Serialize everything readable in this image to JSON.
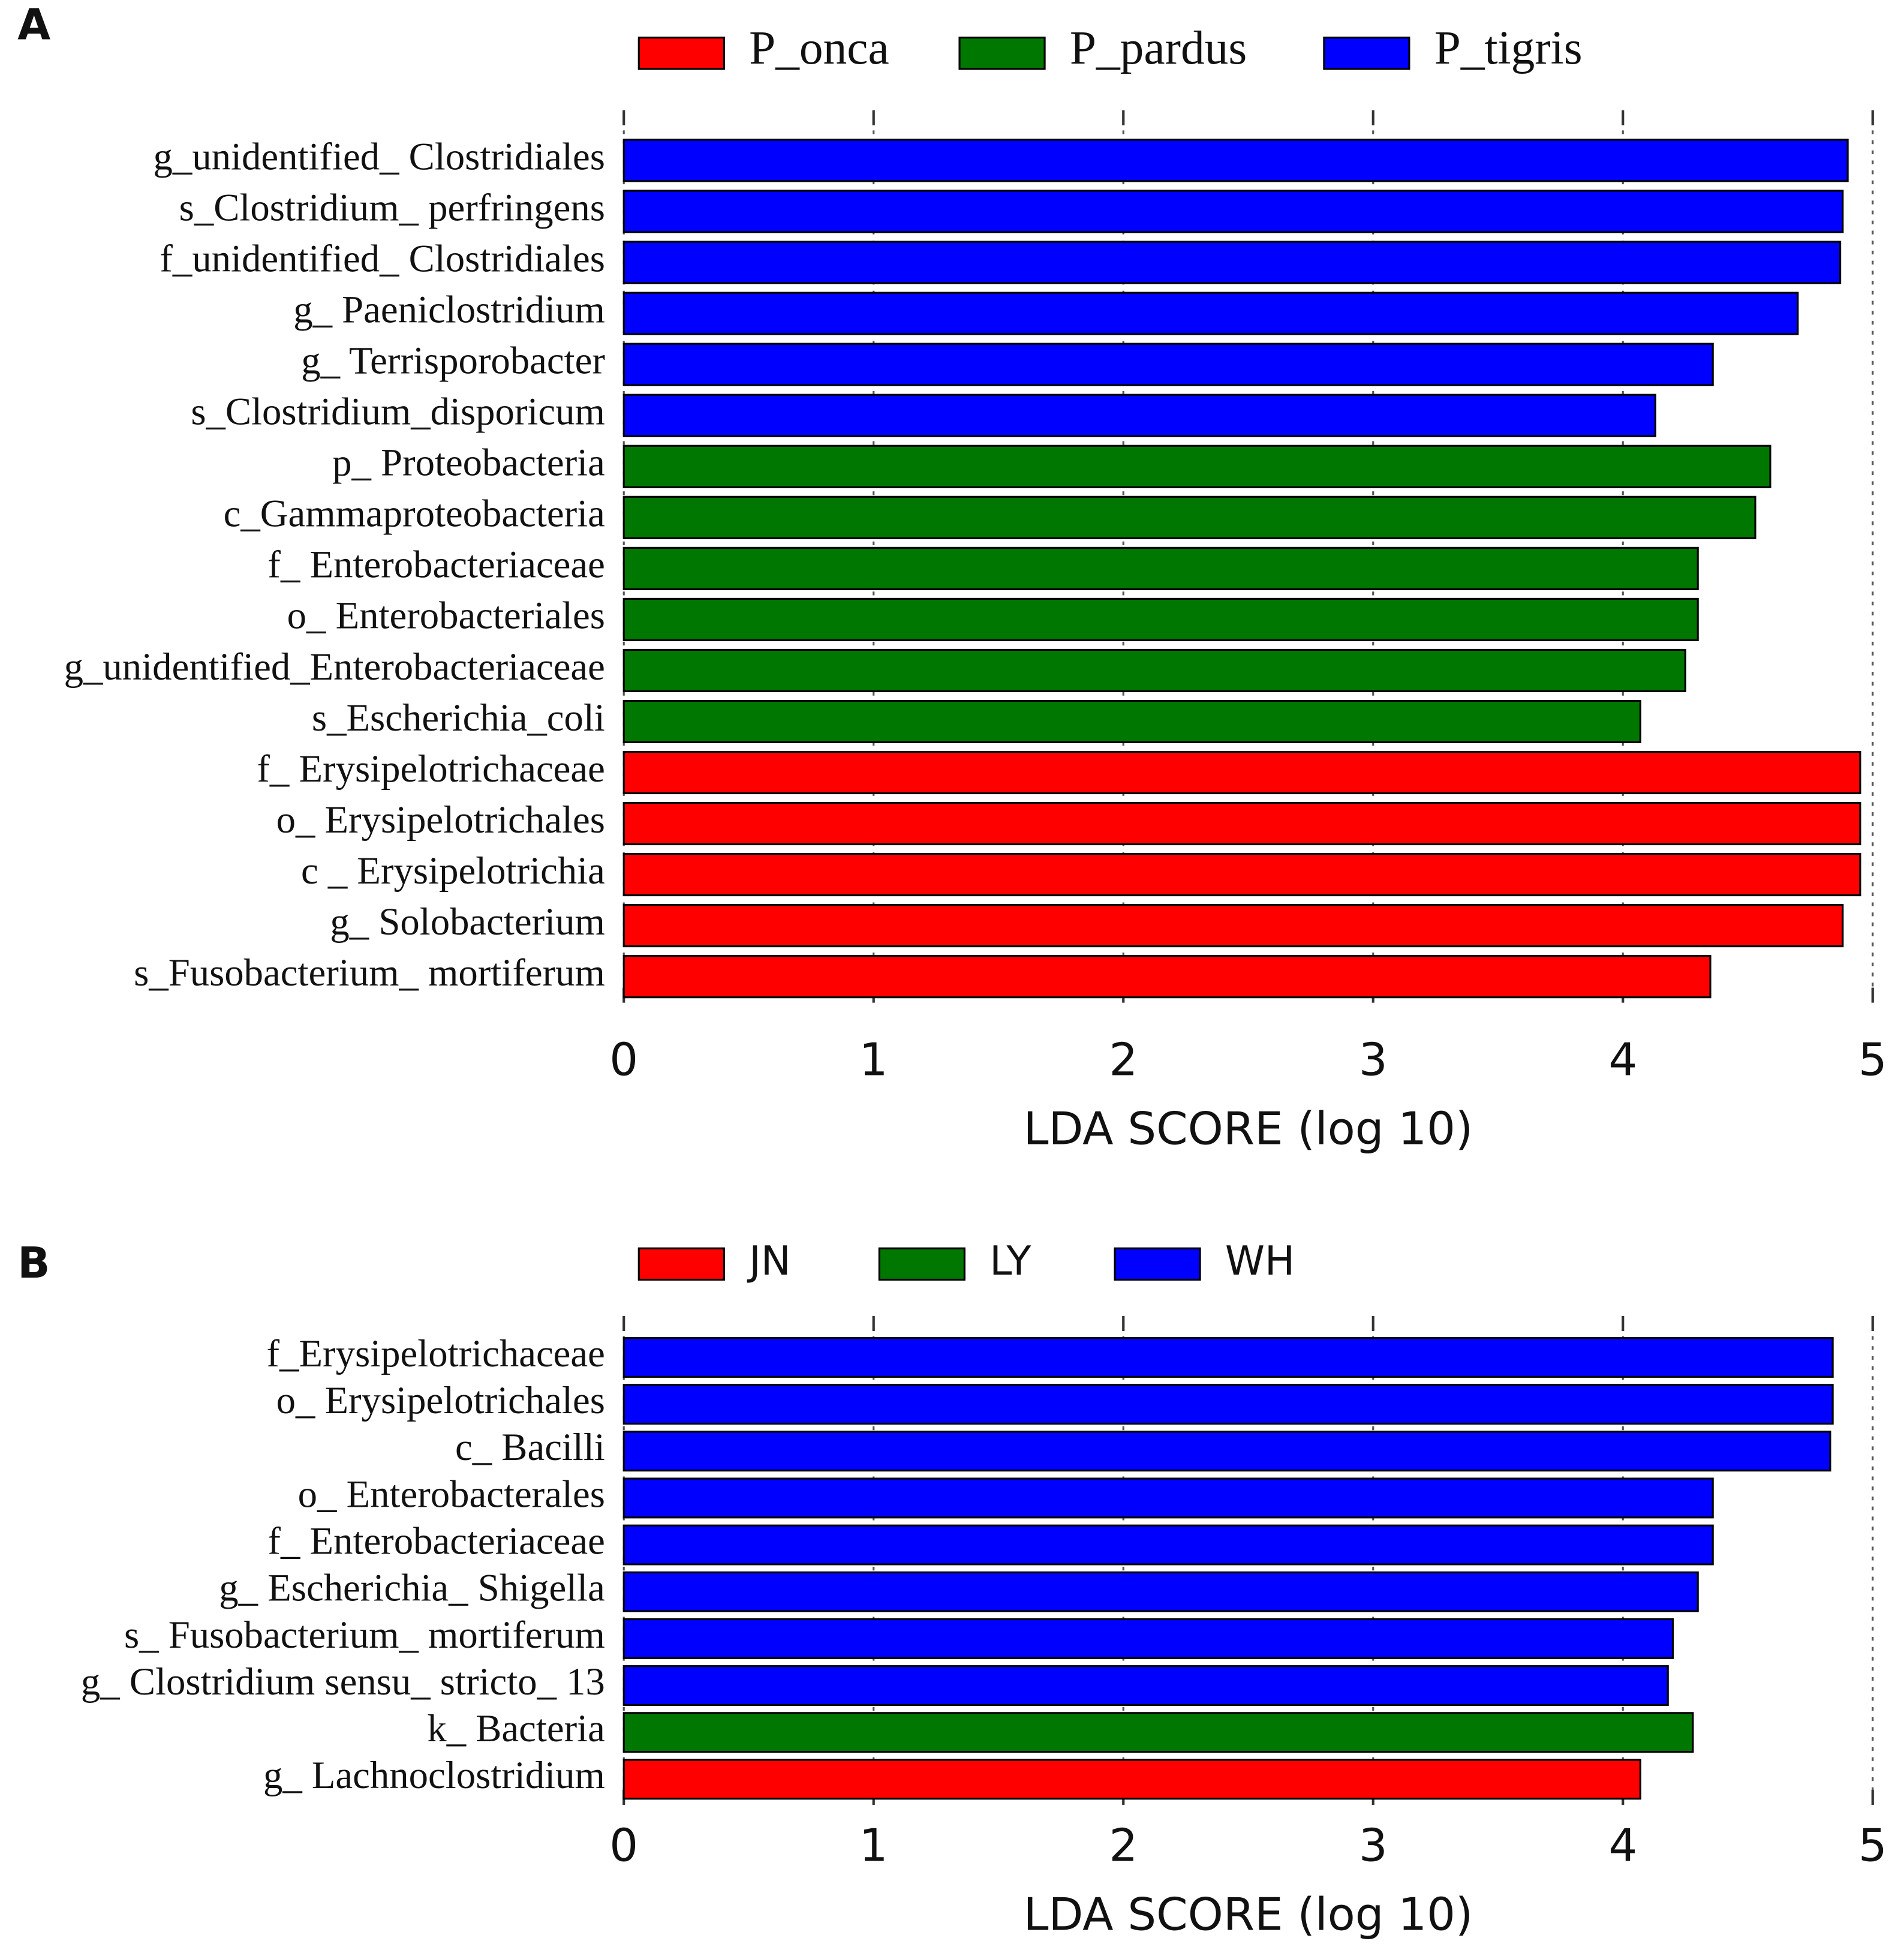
{
  "chart_data": [
    {
      "type": "barh",
      "panel": "A",
      "xlabel": "LDA SCORE (log 10)",
      "categories": [
        "g_unidentified_ Clostridiales",
        "s_Clostridium_ perfringens",
        "f_unidentified_ Clostridiales",
        "g_ Paeniclostridium",
        "g_ Terrisporobacter",
        "s_Clostridium_disporicum",
        "p_ Proteobacteria",
        "c_Gammaproteobacteria",
        "f_ Enterobacteriaceae",
        "o_ Enterobacteriales",
        "g_unidentified_Enterobacteriaceae",
        "s_Escherichia_coli",
        "f_ Erysipelotrichaceae",
        "o_ Erysipelotrichales",
        "c _ Erysipelotrichia",
        "g_ Solobacterium",
        "s_Fusobacterium_ mortiferum"
      ],
      "series": [
        {
          "name": "P_onca",
          "color": "#ff0000",
          "values": [
            null,
            null,
            null,
            null,
            null,
            null,
            null,
            null,
            null,
            null,
            null,
            null,
            4.95,
            4.95,
            4.95,
            4.88,
            4.35
          ]
        },
        {
          "name": "P_pardus",
          "color": "#007700",
          "values": [
            null,
            null,
            null,
            null,
            null,
            null,
            4.59,
            4.53,
            4.3,
            4.3,
            4.25,
            4.07,
            null,
            null,
            null,
            null,
            null
          ]
        },
        {
          "name": "P_tigris",
          "color": "#0000ff",
          "values": [
            4.9,
            4.88,
            4.87,
            4.7,
            4.36,
            4.13,
            null,
            null,
            null,
            null,
            null,
            null,
            null,
            null,
            null,
            null,
            null
          ]
        }
      ],
      "xlim": [
        0,
        5
      ],
      "xticks": [
        0,
        1,
        2,
        3,
        4,
        5
      ],
      "grid": true
    },
    {
      "type": "barh",
      "panel": "B",
      "xlabel": "LDA SCORE (log 10)",
      "categories": [
        "f_Erysipelotrichaceae",
        "o_ Erysipelotrichales",
        "c_ Bacilli",
        "o_ Enterobacterales",
        "f_ Enterobacteriaceae",
        "g_ Escherichia_ Shigella",
        "s_ Fusobacterium_ mortiferum",
        "g_ Clostridium sensu_ stricto_ 13",
        "k_ Bacteria",
        "g_ Lachnoclostridium"
      ],
      "series": [
        {
          "name": "JN",
          "color": "#ff0000",
          "values": [
            null,
            null,
            null,
            null,
            null,
            null,
            null,
            null,
            null,
            4.07
          ]
        },
        {
          "name": "LY",
          "color": "#007700",
          "values": [
            null,
            null,
            null,
            null,
            null,
            null,
            null,
            null,
            4.28,
            null
          ]
        },
        {
          "name": "WH",
          "color": "#0000ff",
          "values": [
            4.84,
            4.84,
            4.83,
            4.36,
            4.36,
            4.3,
            4.2,
            4.18,
            null,
            null
          ]
        }
      ],
      "xlim": [
        0,
        5
      ],
      "xticks": [
        0,
        1,
        2,
        3,
        4,
        5
      ],
      "grid": true
    }
  ]
}
